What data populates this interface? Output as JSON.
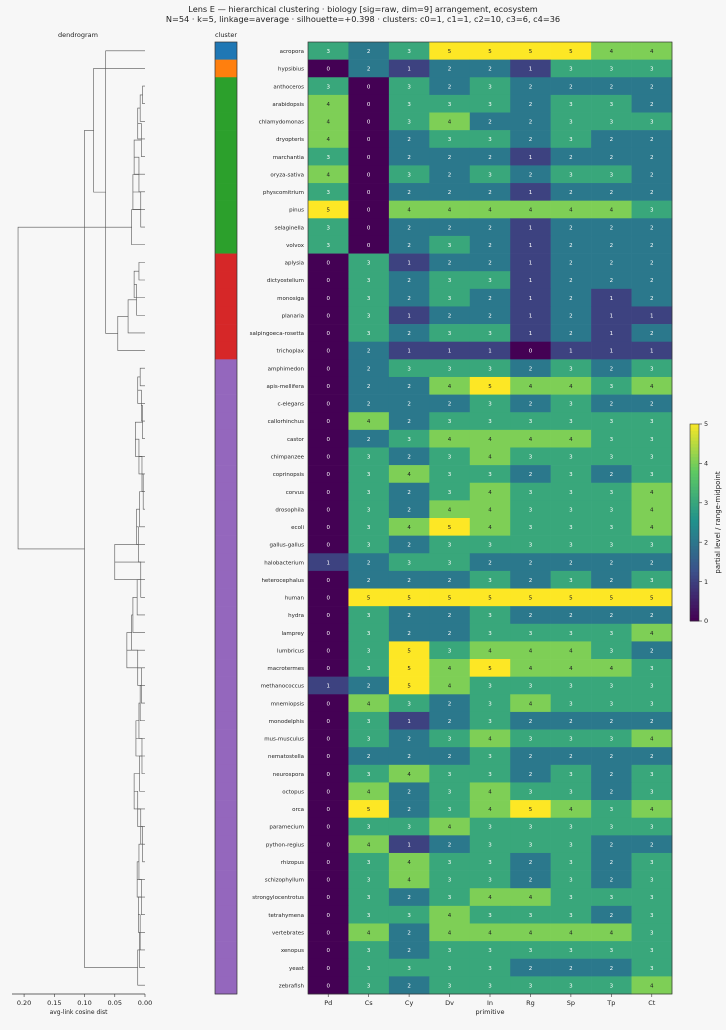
{
  "title_line1": "Lens E — hierarchical clustering · biology [sig=raw, dim=9] arrangement, ecosystem",
  "title_line2": "N=54 · k=5, linkage=average · silhouette=+0.398 · clusters: c0=1, c1=1, c2=10, c3=6, c4=36",
  "dendrogram_label": "dendrogram",
  "cluster_label": "cluster",
  "dendro_xlabel": "avg-link cosine dist",
  "dendro_xticks": [
    "0.20",
    "0.15",
    "0.10",
    "0.05",
    "0.00"
  ],
  "dendro_xtick_values": [
    0.2,
    0.15,
    0.1,
    0.05,
    0.0
  ],
  "heatmap_xlabel": "primitive",
  "colorbar_label": "partial level / range-midpoint",
  "colorbar_ticks": [
    "0",
    "1",
    "2",
    "3",
    "4",
    "5"
  ],
  "cluster_colors": {
    "c0": "#1f77b4",
    "c1": "#ff7f0e",
    "c2": "#2ca02c",
    "c3": "#d62728",
    "c4": "#9467bd"
  },
  "chart_data": {
    "type": "heatmap",
    "columns": [
      "Pd",
      "Cs",
      "Cy",
      "Dv",
      "In",
      "Rg",
      "Sp",
      "Tp",
      "Ct"
    ],
    "vmin": 0,
    "vmax": 5,
    "colormap": "viridis",
    "rows": [
      {
        "name": "acropora",
        "cluster": "c0",
        "values": [
          3,
          2,
          3,
          5,
          5,
          5,
          5,
          4,
          4
        ]
      },
      {
        "name": "hypsibius",
        "cluster": "c1",
        "values": [
          0,
          2,
          1,
          2,
          2,
          1,
          3,
          3,
          3
        ]
      },
      {
        "name": "anthoceros",
        "cluster": "c2",
        "values": [
          3,
          0,
          3,
          2,
          3,
          2,
          2,
          2,
          2
        ]
      },
      {
        "name": "arabidopsis",
        "cluster": "c2",
        "values": [
          4,
          0,
          3,
          3,
          3,
          2,
          3,
          3,
          2
        ]
      },
      {
        "name": "chlamydomonas",
        "cluster": "c2",
        "values": [
          4,
          0,
          3,
          4,
          2,
          2,
          3,
          3,
          3
        ]
      },
      {
        "name": "dryopteris",
        "cluster": "c2",
        "values": [
          4,
          0,
          2,
          3,
          3,
          2,
          3,
          2,
          2
        ]
      },
      {
        "name": "marchantia",
        "cluster": "c2",
        "values": [
          3,
          0,
          2,
          2,
          2,
          1,
          2,
          2,
          2
        ]
      },
      {
        "name": "oryza-sativa",
        "cluster": "c2",
        "values": [
          4,
          0,
          3,
          2,
          3,
          2,
          3,
          3,
          2
        ]
      },
      {
        "name": "physcomitrium",
        "cluster": "c2",
        "values": [
          3,
          0,
          2,
          2,
          2,
          1,
          2,
          2,
          2
        ]
      },
      {
        "name": "pinus",
        "cluster": "c2",
        "values": [
          5,
          0,
          4,
          4,
          4,
          4,
          4,
          4,
          3
        ]
      },
      {
        "name": "selaginella",
        "cluster": "c2",
        "values": [
          3,
          0,
          2,
          2,
          2,
          1,
          2,
          2,
          2
        ]
      },
      {
        "name": "volvox",
        "cluster": "c2",
        "values": [
          3,
          0,
          2,
          3,
          2,
          1,
          2,
          2,
          2
        ]
      },
      {
        "name": "aplysia",
        "cluster": "c3",
        "values": [
          0,
          3,
          1,
          2,
          2,
          1,
          2,
          2,
          2
        ]
      },
      {
        "name": "dictyostelium",
        "cluster": "c3",
        "values": [
          0,
          3,
          2,
          3,
          3,
          1,
          2,
          2,
          2
        ]
      },
      {
        "name": "monosiga",
        "cluster": "c3",
        "values": [
          0,
          3,
          2,
          3,
          2,
          1,
          2,
          1,
          2
        ]
      },
      {
        "name": "planaria",
        "cluster": "c3",
        "values": [
          0,
          3,
          1,
          2,
          2,
          1,
          2,
          1,
          1
        ]
      },
      {
        "name": "salpingoeca-rosetta",
        "cluster": "c3",
        "values": [
          0,
          3,
          2,
          3,
          3,
          1,
          2,
          1,
          2
        ]
      },
      {
        "name": "trichoplax",
        "cluster": "c3",
        "values": [
          0,
          2,
          1,
          1,
          1,
          0,
          1,
          1,
          1
        ]
      },
      {
        "name": "amphimedon",
        "cluster": "c4",
        "values": [
          0,
          2,
          3,
          3,
          3,
          2,
          3,
          2,
          3
        ]
      },
      {
        "name": "apis-mellifera",
        "cluster": "c4",
        "values": [
          0,
          2,
          2,
          4,
          5,
          4,
          4,
          3,
          4
        ]
      },
      {
        "name": "c-elegans",
        "cluster": "c4",
        "values": [
          0,
          2,
          2,
          2,
          3,
          2,
          3,
          2,
          2
        ]
      },
      {
        "name": "callorhinchus",
        "cluster": "c4",
        "values": [
          0,
          4,
          2,
          3,
          3,
          3,
          3,
          3,
          3
        ]
      },
      {
        "name": "castor",
        "cluster": "c4",
        "values": [
          0,
          2,
          3,
          4,
          4,
          4,
          4,
          3,
          3
        ]
      },
      {
        "name": "chimpanzee",
        "cluster": "c4",
        "values": [
          0,
          3,
          2,
          3,
          4,
          3,
          3,
          3,
          3
        ]
      },
      {
        "name": "coprinopsis",
        "cluster": "c4",
        "values": [
          0,
          3,
          4,
          3,
          3,
          2,
          3,
          2,
          3
        ]
      },
      {
        "name": "corvus",
        "cluster": "c4",
        "values": [
          0,
          3,
          2,
          3,
          4,
          3,
          3,
          3,
          4
        ]
      },
      {
        "name": "drosophila",
        "cluster": "c4",
        "values": [
          0,
          3,
          2,
          4,
          4,
          3,
          3,
          3,
          4
        ]
      },
      {
        "name": "ecoli",
        "cluster": "c4",
        "values": [
          0,
          3,
          4,
          5,
          4,
          3,
          3,
          3,
          4
        ]
      },
      {
        "name": "gallus-gallus",
        "cluster": "c4",
        "values": [
          0,
          3,
          2,
          3,
          3,
          3,
          3,
          3,
          3
        ]
      },
      {
        "name": "halobacterium",
        "cluster": "c4",
        "values": [
          1,
          2,
          3,
          3,
          2,
          2,
          2,
          2,
          2
        ]
      },
      {
        "name": "heterocephalus",
        "cluster": "c4",
        "values": [
          0,
          2,
          2,
          2,
          3,
          2,
          3,
          2,
          3
        ]
      },
      {
        "name": "human",
        "cluster": "c4",
        "values": [
          0,
          5,
          5,
          5,
          5,
          5,
          5,
          5,
          5
        ]
      },
      {
        "name": "hydra",
        "cluster": "c4",
        "values": [
          0,
          3,
          2,
          2,
          3,
          2,
          2,
          2,
          2
        ]
      },
      {
        "name": "lamprey",
        "cluster": "c4",
        "values": [
          0,
          3,
          2,
          2,
          3,
          3,
          3,
          3,
          4
        ]
      },
      {
        "name": "lumbricus",
        "cluster": "c4",
        "values": [
          0,
          3,
          5,
          3,
          4,
          4,
          4,
          3,
          2
        ]
      },
      {
        "name": "macrotermes",
        "cluster": "c4",
        "values": [
          0,
          3,
          5,
          4,
          5,
          4,
          4,
          4,
          3
        ]
      },
      {
        "name": "methanococcus",
        "cluster": "c4",
        "values": [
          1,
          2,
          5,
          4,
          3,
          3,
          3,
          3,
          3
        ]
      },
      {
        "name": "mnemiopsis",
        "cluster": "c4",
        "values": [
          0,
          4,
          3,
          2,
          3,
          4,
          3,
          3,
          3
        ]
      },
      {
        "name": "monodelphis",
        "cluster": "c4",
        "values": [
          0,
          3,
          1,
          2,
          3,
          2,
          2,
          2,
          2
        ]
      },
      {
        "name": "mus-musculus",
        "cluster": "c4",
        "values": [
          0,
          3,
          2,
          3,
          4,
          3,
          3,
          3,
          4
        ]
      },
      {
        "name": "nematostella",
        "cluster": "c4",
        "values": [
          0,
          2,
          2,
          2,
          3,
          2,
          2,
          2,
          2
        ]
      },
      {
        "name": "neurospora",
        "cluster": "c4",
        "values": [
          0,
          3,
          4,
          3,
          3,
          2,
          3,
          2,
          3
        ]
      },
      {
        "name": "octopus",
        "cluster": "c4",
        "values": [
          0,
          4,
          2,
          3,
          4,
          3,
          3,
          2,
          3
        ]
      },
      {
        "name": "orca",
        "cluster": "c4",
        "values": [
          0,
          5,
          2,
          3,
          4,
          5,
          4,
          3,
          4
        ]
      },
      {
        "name": "paramecium",
        "cluster": "c4",
        "values": [
          0,
          3,
          3,
          4,
          3,
          3,
          3,
          3,
          3
        ]
      },
      {
        "name": "python-regius",
        "cluster": "c4",
        "values": [
          0,
          4,
          1,
          2,
          3,
          3,
          3,
          2,
          2
        ]
      },
      {
        "name": "rhizopus",
        "cluster": "c4",
        "values": [
          0,
          3,
          4,
          3,
          3,
          2,
          3,
          2,
          3
        ]
      },
      {
        "name": "schizophyllum",
        "cluster": "c4",
        "values": [
          0,
          3,
          4,
          3,
          3,
          2,
          3,
          2,
          3
        ]
      },
      {
        "name": "strongylocentrotus",
        "cluster": "c4",
        "values": [
          0,
          3,
          2,
          3,
          4,
          4,
          3,
          3,
          3
        ]
      },
      {
        "name": "tetrahymena",
        "cluster": "c4",
        "values": [
          0,
          3,
          3,
          4,
          3,
          3,
          3,
          2,
          3
        ]
      },
      {
        "name": "vertebrates",
        "cluster": "c4",
        "values": [
          0,
          4,
          2,
          4,
          4,
          4,
          4,
          4,
          3
        ]
      },
      {
        "name": "xenopus",
        "cluster": "c4",
        "values": [
          0,
          3,
          2,
          3,
          3,
          3,
          3,
          3,
          3
        ]
      },
      {
        "name": "yeast",
        "cluster": "c4",
        "values": [
          0,
          3,
          3,
          3,
          3,
          2,
          2,
          2,
          3
        ]
      },
      {
        "name": "zebrafish",
        "cluster": "c4",
        "values": [
          0,
          3,
          2,
          3,
          3,
          3,
          3,
          3,
          4
        ]
      }
    ]
  }
}
